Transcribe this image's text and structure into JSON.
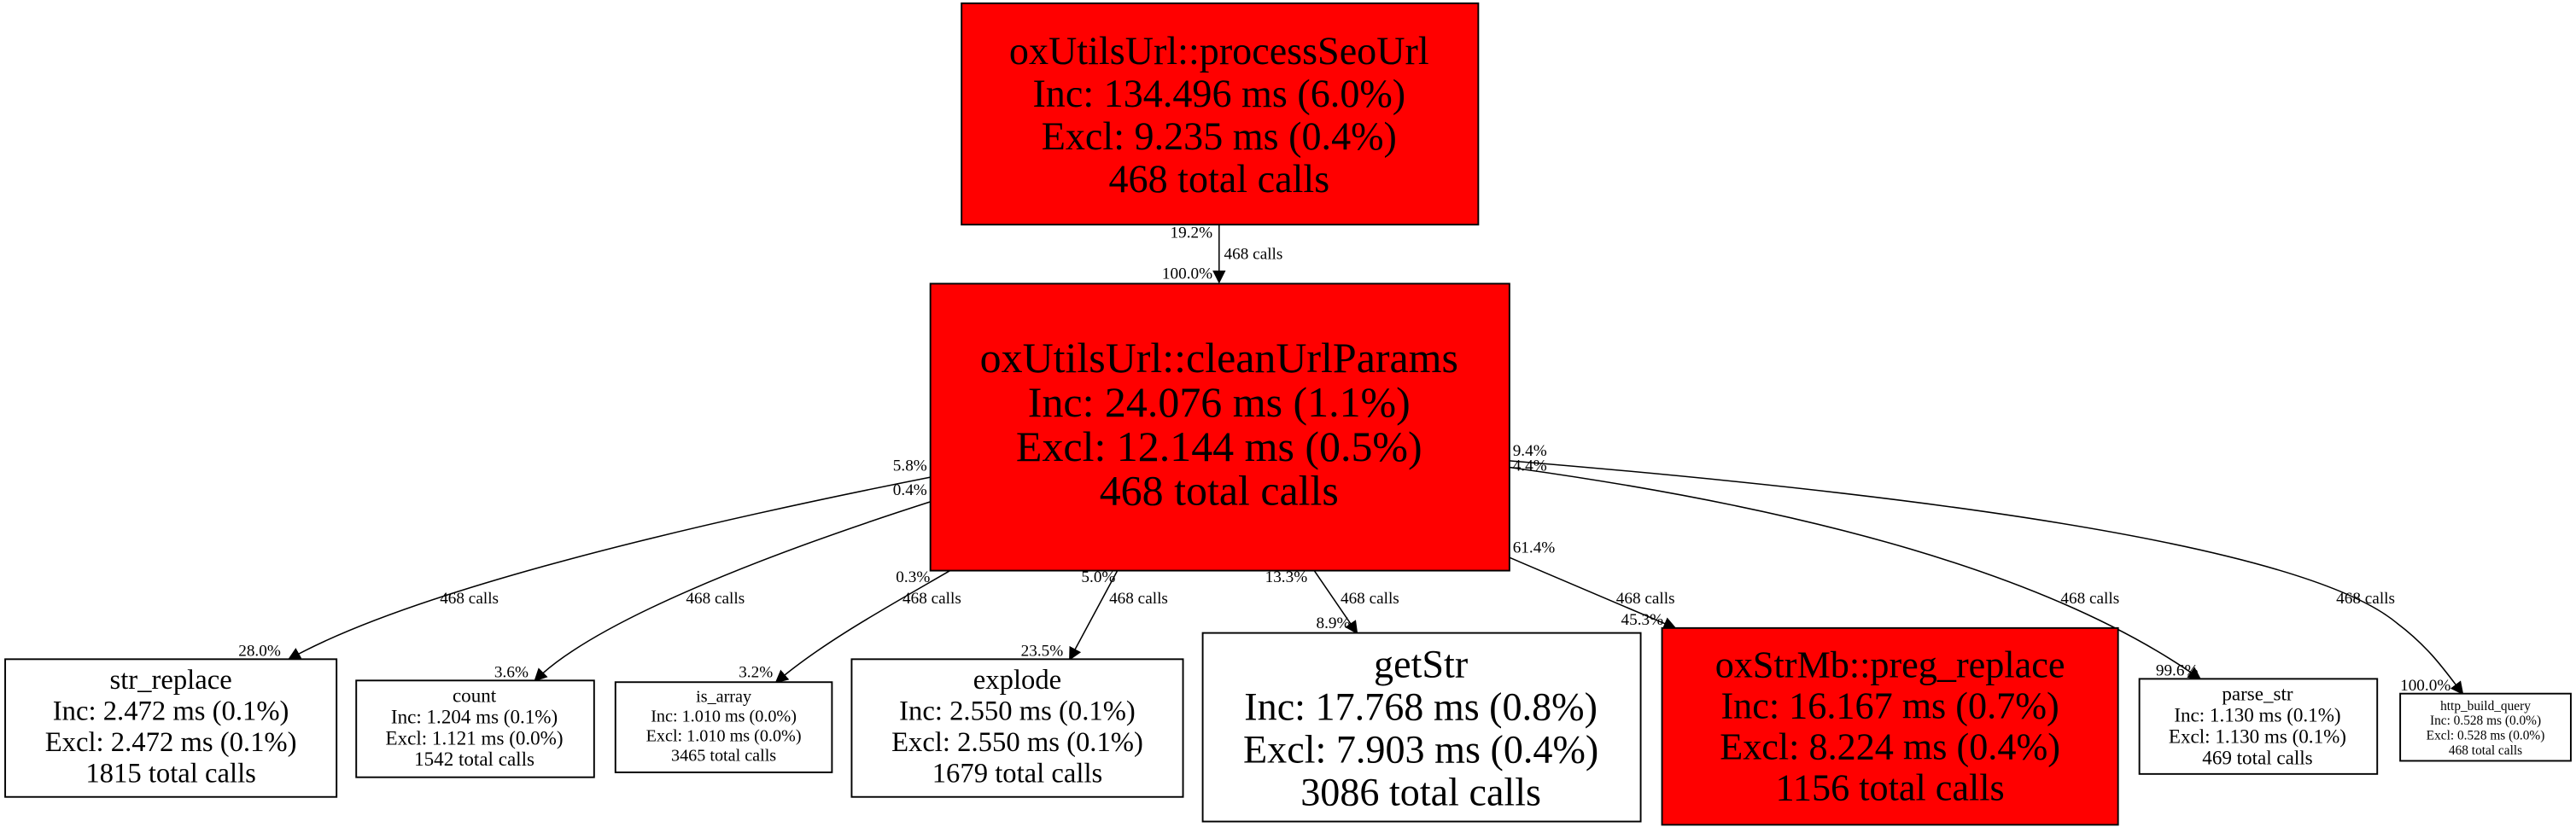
{
  "colors": {
    "hot": "#ff0000",
    "normal": "#ffffff"
  },
  "nodes": {
    "processSeoUrl": {
      "name": "oxUtilsUrl::processSeoUrl",
      "inc": "Inc: 134.496 ms (6.0%)",
      "excl": "Excl: 9.235 ms (0.4%)",
      "calls": "468 total calls"
    },
    "cleanUrlParams": {
      "name": "oxUtilsUrl::cleanUrlParams",
      "inc": "Inc: 24.076 ms (1.1%)",
      "excl": "Excl: 12.144 ms (0.5%)",
      "calls": "468 total calls"
    },
    "str_replace": {
      "name": "str_replace",
      "inc": "Inc: 2.472 ms (0.1%)",
      "excl": "Excl: 2.472 ms (0.1%)",
      "calls": "1815 total calls"
    },
    "count": {
      "name": "count",
      "inc": "Inc: 1.204 ms (0.1%)",
      "excl": "Excl: 1.121 ms (0.0%)",
      "calls": "1542 total calls"
    },
    "is_array": {
      "name": "is_array",
      "inc": "Inc: 1.010 ms (0.0%)",
      "excl": "Excl: 1.010 ms (0.0%)",
      "calls": "3465 total calls"
    },
    "explode": {
      "name": "explode",
      "inc": "Inc: 2.550 ms (0.1%)",
      "excl": "Excl: 2.550 ms (0.1%)",
      "calls": "1679 total calls"
    },
    "getStr": {
      "name": "getStr",
      "inc": "Inc: 17.768 ms (0.8%)",
      "excl": "Excl: 7.903 ms (0.4%)",
      "calls": "3086 total calls"
    },
    "preg_replace": {
      "name": "oxStrMb::preg_replace",
      "inc": "Inc: 16.167 ms (0.7%)",
      "excl": "Excl: 8.224 ms (0.4%)",
      "calls": "1156 total calls"
    },
    "parse_str": {
      "name": "parse_str",
      "inc": "Inc: 1.130 ms (0.1%)",
      "excl": "Excl: 1.130 ms (0.1%)",
      "calls": "469 total calls"
    },
    "http_build_query": {
      "name": "http_build_query",
      "inc": "Inc: 0.528 ms (0.0%)",
      "excl": "Excl: 0.528 ms (0.0%)",
      "calls": "468 total calls"
    }
  },
  "edges": {
    "seo_clean": {
      "from_pct": "19.2%",
      "calls": "468 calls",
      "to_pct": "100.0%"
    },
    "str_replace": {
      "from_pct": "5.8%",
      "calls": "468 calls",
      "to_pct": "28.0%"
    },
    "count": {
      "from_pct": "0.4%",
      "calls": "468 calls",
      "to_pct": "3.6%"
    },
    "is_array": {
      "from_pct": "0.3%",
      "calls": "468 calls",
      "to_pct": "3.2%"
    },
    "explode": {
      "from_pct": "5.0%",
      "calls": "468 calls",
      "to_pct": "23.5%"
    },
    "getStr": {
      "from_pct": "13.3%",
      "calls": "468 calls",
      "to_pct": "8.9%"
    },
    "preg_replace": {
      "from_pct": "61.4%",
      "calls": "468 calls",
      "to_pct": "45.3%"
    },
    "parse_str": {
      "from_pct": "4.4%",
      "calls": "468 calls",
      "to_pct": "99.6%"
    },
    "http_build_query": {
      "from_pct": "9.4%",
      "calls": "468 calls",
      "to_pct": "100.0%"
    }
  }
}
